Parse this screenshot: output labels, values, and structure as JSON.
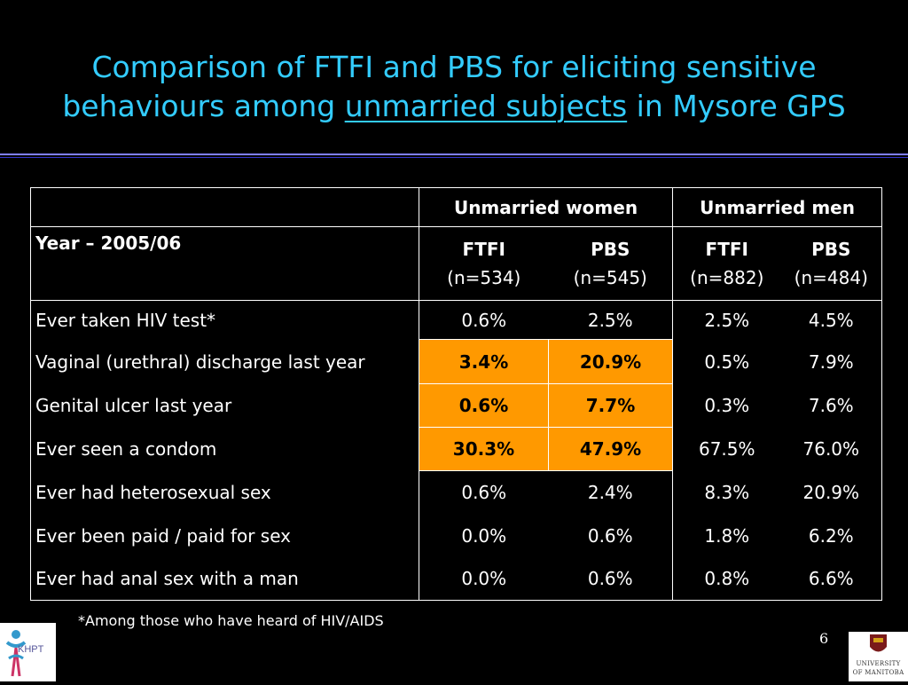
{
  "slide": {
    "title_line1": "Comparison of FTFI and PBS for eliciting sensitive",
    "title_line2_pre": "behaviours among ",
    "title_line2_underlined": "unmarried subjects",
    "title_line2_post": " in Mysore GPS",
    "footnote": "*Among those who have heard of HIV/AIDS",
    "page_number": "6",
    "logo_left_text": "KHPT",
    "logo_right_line1": "UNIVERSITY",
    "logo_right_line2": "OF MANITOBA"
  },
  "table": {
    "group_headers": [
      "Unmarried women",
      "Unmarried men"
    ],
    "year_label": "Year – 2005/06",
    "columns": [
      {
        "method": "FTFI",
        "n": "(n=534)"
      },
      {
        "method": "PBS",
        "n": "(n=545)"
      },
      {
        "method": "FTFI",
        "n": "(n=882)"
      },
      {
        "method": "PBS",
        "n": "(n=484)"
      }
    ],
    "rows": [
      {
        "label": "Ever taken HIV test*",
        "values": [
          "0.6%",
          "2.5%",
          "2.5%",
          "4.5%"
        ],
        "highlight_women": false
      },
      {
        "label": "Vaginal (urethral) discharge last year",
        "values": [
          "3.4%",
          "20.9%",
          "0.5%",
          "7.9%"
        ],
        "highlight_women": true
      },
      {
        "label": "Genital ulcer last year",
        "values": [
          "0.6%",
          "7.7%",
          "0.3%",
          "7.6%"
        ],
        "highlight_women": true
      },
      {
        "label": "Ever seen a condom",
        "values": [
          "30.3%",
          "47.9%",
          "67.5%",
          "76.0%"
        ],
        "highlight_women": true
      },
      {
        "label": "Ever had heterosexual sex",
        "values": [
          "0.6%",
          "2.4%",
          "8.3%",
          "20.9%"
        ],
        "highlight_women": false
      },
      {
        "label": "Ever been paid / paid for sex",
        "values": [
          "0.0%",
          "0.6%",
          "1.8%",
          "6.2%"
        ],
        "highlight_women": false
      },
      {
        "label": "Ever had anal sex with a man",
        "values": [
          "0.0%",
          "0.6%",
          "0.8%",
          "6.6%"
        ],
        "highlight_women": false
      }
    ],
    "highlight_color": "#ff9900"
  },
  "colors": {
    "background": "#000000",
    "title": "#33ccff",
    "rule": "#8080ff"
  }
}
